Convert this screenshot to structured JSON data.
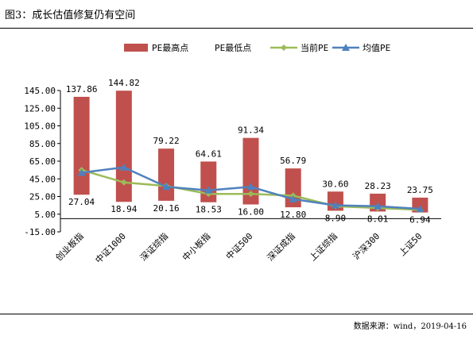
{
  "page": {
    "title": "图3：成长估值修复仍有空间",
    "source": "数据来源：wind，2019-04-16"
  },
  "chart_data": {
    "type": "bar",
    "title": "",
    "xlabel": "",
    "ylabel": "",
    "ylim": [
      -15,
      145
    ],
    "yticks": [
      "145.00",
      "125.00",
      "105.00",
      "85.00",
      "65.00",
      "45.00",
      "25.00",
      "5.00",
      "-15.00"
    ],
    "ytick_values": [
      145,
      125,
      105,
      85,
      65,
      45,
      25,
      5,
      -15
    ],
    "categories": [
      "创业板指",
      "中证1000",
      "深证综指",
      "中小板指",
      "中证500",
      "深证成指",
      "上证综指",
      "沪深300",
      "上证50"
    ],
    "legend": {
      "position": "top"
    },
    "grid": false,
    "series": [
      {
        "name": "PE最高点",
        "kind": "range-bar-top",
        "color": "#c0504d",
        "values": [
          137.86,
          144.82,
          79.22,
          64.61,
          91.34,
          56.79,
          30.6,
          28.23,
          23.75
        ],
        "labels": [
          "137.86",
          "144.82",
          "79.22",
          "64.61",
          "91.34",
          "56.79",
          "30.60",
          "28.23",
          "23.75"
        ]
      },
      {
        "name": "PE最低点",
        "kind": "range-bar-bottom",
        "color": "#ffffff",
        "values": [
          27.04,
          18.94,
          20.16,
          18.53,
          16.0,
          12.8,
          8.9,
          8.01,
          6.94
        ],
        "labels": [
          "27.04",
          "18.94",
          "20.16",
          "18.53",
          "16.00",
          "12.80",
          "8.90",
          "8.01",
          "6.94"
        ]
      },
      {
        "name": "当前PE",
        "kind": "line",
        "marker": "diamond",
        "color": "#9bbb59",
        "values": [
          55,
          41,
          37,
          28,
          28,
          26,
          14,
          12,
          10
        ]
      },
      {
        "name": "均值PE",
        "kind": "line",
        "marker": "triangle",
        "color": "#4f81bd",
        "values": [
          52,
          58,
          36,
          32,
          36,
          22,
          15,
          14,
          11
        ]
      }
    ]
  }
}
